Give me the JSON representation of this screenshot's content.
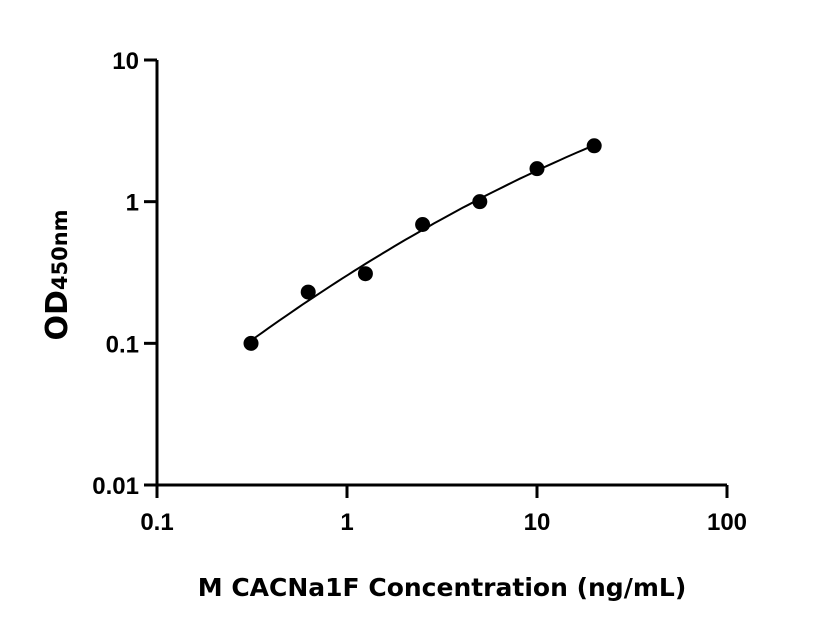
{
  "chart_data": {
    "type": "scatter",
    "title": "",
    "xlabel": "M CACNa1F Concentration (ng/mL)",
    "ylabel": "OD",
    "ylabel_subscript": "450nm",
    "x_scale": "log",
    "y_scale": "log",
    "xlim": [
      0.1,
      100
    ],
    "ylim": [
      0.01,
      10
    ],
    "x_ticks": [
      "0.1",
      "1",
      "10",
      "100"
    ],
    "y_ticks": [
      "0.01",
      "0.1",
      "1",
      "10"
    ],
    "grid": false,
    "fit_line": true,
    "colors": {
      "points": "#000000",
      "line": "#000000"
    },
    "series": [
      {
        "x": [
          0.3125,
          0.625,
          1.25,
          2.5,
          5,
          10,
          20
        ],
        "y": [
          0.1,
          0.23,
          0.31,
          0.69,
          1.0,
          1.71,
          2.48
        ]
      }
    ]
  }
}
